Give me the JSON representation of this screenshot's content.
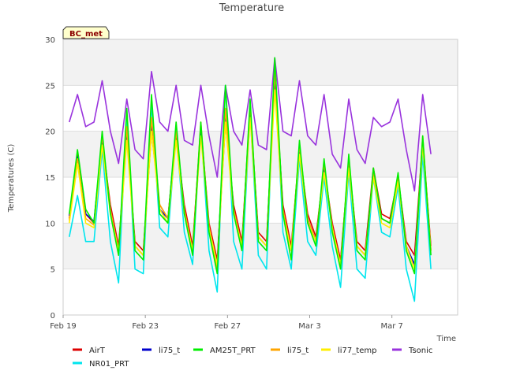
{
  "chart_data": {
    "type": "line",
    "title": "Temperature",
    "xlabel": "Time",
    "ylabel": "Temperatures (C)",
    "ylim": [
      0,
      30
    ],
    "yticks": [
      0,
      5,
      10,
      15,
      20,
      25,
      30
    ],
    "xlim": [
      0,
      19.2
    ],
    "xticks": [
      {
        "value": 0,
        "label": "Feb 19"
      },
      {
        "value": 4,
        "label": "Feb 23"
      },
      {
        "value": 8,
        "label": "Feb 27"
      },
      {
        "value": 12,
        "label": "Mar 3"
      },
      {
        "value": 16,
        "label": "Mar 7"
      }
    ],
    "badge": "BC_met",
    "grid": true,
    "legend_position": "bottom",
    "series": [
      {
        "name": "AirT",
        "color": "#dd0000",
        "x": [
          0.3,
          0.7,
          1.1,
          1.5,
          1.9,
          2.3,
          2.7,
          3.1,
          3.5,
          3.9,
          4.3,
          4.7,
          5.1,
          5.5,
          5.9,
          6.3,
          6.7,
          7.1,
          7.5,
          7.9,
          8.3,
          8.7,
          9.1,
          9.5,
          9.9,
          10.3,
          10.7,
          11.1,
          11.5,
          11.9,
          12.3,
          12.7,
          13.1,
          13.5,
          13.9,
          14.3,
          14.7,
          15.1,
          15.5,
          15.9,
          16.3,
          16.7,
          17.1,
          17.5,
          17.9
        ],
        "y": [
          10.5,
          17.5,
          11.0,
          10.0,
          19.0,
          12.0,
          7.5,
          19.5,
          8.0,
          7.0,
          20.0,
          12.0,
          10.5,
          19.5,
          12.0,
          7.5,
          20.5,
          10.0,
          6.0,
          21.0,
          12.0,
          8.0,
          22.5,
          9.0,
          8.0,
          25.5,
          12.0,
          7.5,
          18.0,
          11.0,
          8.5,
          16.0,
          10.0,
          6.0,
          16.5,
          8.0,
          7.0,
          16.0,
          11.0,
          10.5,
          15.0,
          8.0,
          6.5,
          19.0,
          7.5
        ]
      },
      {
        "name": "NR01_PRT",
        "color": "#00e5ee",
        "x": [
          0.3,
          0.7,
          1.1,
          1.5,
          1.9,
          2.3,
          2.7,
          3.1,
          3.5,
          3.9,
          4.3,
          4.7,
          5.1,
          5.5,
          5.9,
          6.3,
          6.7,
          7.1,
          7.5,
          7.9,
          8.3,
          8.7,
          9.1,
          9.5,
          9.9,
          10.3,
          10.7,
          11.1,
          11.5,
          11.9,
          12.3,
          12.7,
          13.1,
          13.5,
          13.9,
          14.3,
          14.7,
          15.1,
          15.5,
          15.9,
          16.3,
          16.7,
          17.1,
          17.5,
          17.9
        ],
        "y": [
          8.5,
          13.0,
          8.0,
          8.0,
          18.0,
          8.0,
          3.5,
          22.0,
          5.0,
          4.5,
          23.0,
          9.5,
          8.5,
          20.0,
          9.0,
          5.5,
          20.5,
          7.0,
          2.5,
          25.0,
          8.0,
          5.0,
          22.0,
          6.5,
          5.0,
          27.0,
          9.0,
          5.0,
          17.0,
          8.0,
          6.5,
          15.0,
          7.5,
          3.0,
          15.5,
          5.0,
          4.0,
          15.0,
          9.0,
          8.5,
          14.0,
          5.0,
          1.5,
          17.5,
          5.0
        ]
      },
      {
        "name": "li75_t",
        "color": "#0000cc",
        "x": [
          0.3,
          0.7,
          1.1,
          1.5,
          1.9,
          2.3,
          2.7,
          3.1,
          3.5,
          3.9,
          4.3,
          4.7,
          5.1,
          5.5,
          5.9,
          6.3,
          6.7,
          7.1,
          7.5,
          7.9,
          8.3,
          8.7,
          9.1,
          9.5,
          9.9,
          10.3,
          10.7,
          11.1,
          11.5,
          11.9,
          12.3,
          12.7,
          13.1,
          13.5,
          13.9,
          14.3,
          14.7,
          15.1,
          15.5,
          15.9,
          16.3,
          16.7,
          17.1,
          17.5,
          17.9
        ],
        "y": [
          10.8,
          17.2,
          11.0,
          10.2,
          19.0,
          11.5,
          7.0,
          20.0,
          7.5,
          6.5,
          21.0,
          11.5,
          10.5,
          20.0,
          11.5,
          7.0,
          20.5,
          9.5,
          5.5,
          22.0,
          11.5,
          7.5,
          22.5,
          8.5,
          7.5,
          26.0,
          11.5,
          7.0,
          18.0,
          10.5,
          8.0,
          16.0,
          9.5,
          5.5,
          16.5,
          7.5,
          6.5,
          15.5,
          10.5,
          10.0,
          15.0,
          7.5,
          5.5,
          19.0,
          7.0
        ]
      },
      {
        "name": "AM25T_PRT",
        "color": "#00ee00",
        "x": [
          0.3,
          0.7,
          1.1,
          1.5,
          1.9,
          2.3,
          2.7,
          3.1,
          3.5,
          3.9,
          4.3,
          4.7,
          5.1,
          5.5,
          5.9,
          6.3,
          6.7,
          7.1,
          7.5,
          7.9,
          8.3,
          8.7,
          9.1,
          9.5,
          9.9,
          10.3,
          10.7,
          11.1,
          11.5,
          11.9,
          12.3,
          12.7,
          13.1,
          13.5,
          13.9,
          14.3,
          14.7,
          15.1,
          15.5,
          15.9,
          16.3,
          16.7,
          17.1,
          17.5,
          17.9
        ],
        "y": [
          11.0,
          18.0,
          11.5,
          10.0,
          20.0,
          11.0,
          6.5,
          22.5,
          7.0,
          6.0,
          24.0,
          11.0,
          10.0,
          21.0,
          11.0,
          6.5,
          21.0,
          9.0,
          4.5,
          25.0,
          11.0,
          7.0,
          23.5,
          8.0,
          7.0,
          28.0,
          11.0,
          6.0,
          19.0,
          10.0,
          7.5,
          17.0,
          9.0,
          5.0,
          17.5,
          7.0,
          6.0,
          16.0,
          10.5,
          10.0,
          15.5,
          7.0,
          4.5,
          19.5,
          6.5
        ]
      },
      {
        "name": "li75_t",
        "color": "#ffa500",
        "x": [
          0.3,
          0.7,
          1.1,
          1.5,
          1.9,
          2.3,
          2.7,
          3.1,
          3.5,
          3.9,
          4.3,
          4.7,
          5.1,
          5.5,
          5.9,
          6.3,
          6.7,
          7.1,
          7.5,
          7.9,
          8.3,
          8.7,
          9.1,
          9.5,
          9.9,
          10.3,
          10.7,
          11.1,
          11.5,
          11.9,
          12.3,
          12.7,
          13.1,
          13.5,
          13.9,
          14.3,
          14.7,
          15.1,
          15.5,
          15.9,
          16.3,
          16.7,
          17.1,
          17.5,
          17.9
        ],
        "y": [
          10.3,
          17.0,
          10.5,
          9.8,
          19.5,
          11.5,
          7.0,
          20.5,
          7.5,
          6.5,
          21.5,
          12.0,
          10.5,
          20.0,
          11.5,
          7.0,
          21.0,
          9.5,
          5.0,
          22.5,
          11.5,
          7.5,
          23.0,
          8.5,
          7.5,
          26.5,
          11.5,
          7.0,
          18.5,
          10.5,
          8.0,
          16.5,
          9.5,
          5.5,
          17.0,
          7.5,
          6.5,
          15.5,
          10.5,
          10.0,
          15.0,
          7.5,
          5.0,
          19.5,
          7.0
        ]
      },
      {
        "name": "li77_temp",
        "color": "#ffee00",
        "x": [
          0.3,
          0.7,
          1.1,
          1.5,
          1.9,
          2.3,
          2.7,
          3.1,
          3.5,
          3.9,
          4.3,
          4.7,
          5.1,
          5.5,
          5.9,
          6.3,
          6.7,
          7.1,
          7.5,
          7.9,
          8.3,
          8.7,
          9.1,
          9.5,
          9.9,
          10.3,
          10.7,
          11.1,
          11.5,
          11.9,
          12.3,
          12.7,
          13.1,
          13.5,
          13.9,
          14.3,
          14.7,
          15.1,
          15.5,
          15.9,
          16.3,
          16.7,
          17.1,
          17.5,
          17.9
        ],
        "y": [
          10.0,
          16.5,
          10.0,
          9.5,
          18.5,
          11.0,
          7.0,
          19.0,
          7.5,
          6.5,
          20.0,
          11.5,
          10.0,
          19.0,
          11.0,
          7.0,
          19.5,
          9.5,
          5.5,
          21.0,
          11.0,
          7.5,
          21.5,
          8.5,
          7.5,
          24.5,
          11.0,
          7.0,
          17.5,
          10.0,
          8.0,
          15.5,
          9.5,
          5.5,
          16.0,
          7.5,
          6.5,
          15.0,
          10.0,
          9.5,
          14.5,
          7.5,
          5.0,
          18.5,
          7.0
        ]
      },
      {
        "name": "Tsonic",
        "color": "#9933dd",
        "x": [
          0.3,
          0.7,
          1.1,
          1.5,
          1.9,
          2.3,
          2.7,
          3.1,
          3.5,
          3.9,
          4.3,
          4.7,
          5.1,
          5.5,
          5.9,
          6.3,
          6.7,
          7.1,
          7.5,
          7.9,
          8.3,
          8.7,
          9.1,
          9.5,
          9.9,
          10.3,
          10.7,
          11.1,
          11.5,
          11.9,
          12.3,
          12.7,
          13.1,
          13.5,
          13.9,
          14.3,
          14.7,
          15.1,
          15.5,
          15.9,
          16.3,
          16.7,
          17.1,
          17.5,
          17.9
        ],
        "y": [
          21.0,
          24.0,
          20.5,
          21.0,
          25.5,
          20.0,
          16.5,
          23.5,
          18.0,
          17.0,
          26.5,
          21.0,
          20.0,
          25.0,
          19.0,
          18.5,
          25.0,
          19.5,
          15.0,
          25.0,
          20.0,
          18.5,
          24.5,
          18.5,
          18.0,
          28.0,
          20.0,
          19.5,
          25.5,
          19.5,
          18.5,
          24.0,
          17.5,
          16.0,
          23.5,
          18.0,
          16.5,
          21.5,
          20.5,
          21.0,
          23.5,
          18.0,
          13.5,
          24.0,
          17.5
        ]
      }
    ]
  }
}
